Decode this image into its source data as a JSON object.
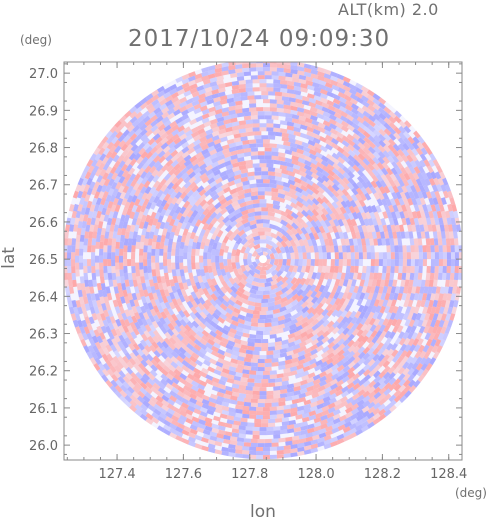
{
  "header": {
    "altitude": "ALT(km) 2.0",
    "timestamp": "2017/10/24 09:09:30"
  },
  "axes": {
    "y_unit": "(deg)",
    "x_unit": "(deg)",
    "y_label": "lat",
    "x_label": "lon",
    "y_range": [
      25.96,
      27.03
    ],
    "x_range": [
      127.24,
      128.44
    ],
    "y_ticks": [
      "26.0",
      "26.1",
      "26.2",
      "26.3",
      "26.4",
      "26.5",
      "26.6",
      "26.7",
      "26.8",
      "26.9",
      "27.0"
    ],
    "x_ticks": [
      "127.4",
      "127.6",
      "127.8",
      "128.0",
      "128.2",
      "128.4"
    ]
  },
  "radar": {
    "center_lon": 127.84,
    "center_lat": 26.5,
    "field": "doppler velocity",
    "colors": {
      "positive": "#ff9a9a",
      "negative": "#9a9aff",
      "neutral": "#ffffff"
    }
  },
  "colors": {
    "frame": "#888888",
    "text": "#707070"
  }
}
